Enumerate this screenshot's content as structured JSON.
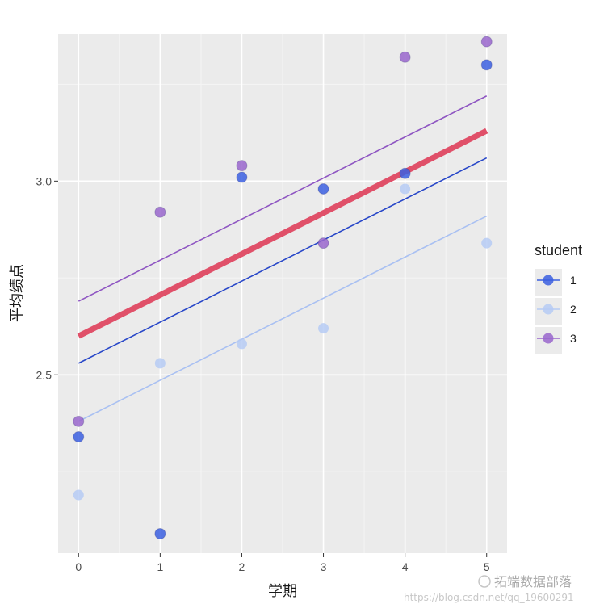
{
  "chart_data": {
    "type": "scatter",
    "title": "",
    "xlabel": "学期",
    "ylabel": "平均绩点",
    "xlim": [
      -0.25,
      5.25
    ],
    "ylim": [
      2.04,
      3.38
    ],
    "x_ticks": [
      0,
      1,
      2,
      3,
      4,
      5
    ],
    "x_tick_labels": [
      "0",
      "1",
      "2",
      "3",
      "4",
      "5"
    ],
    "y_ticks": [
      2.5,
      3.0
    ],
    "y_tick_labels": [
      "2.5",
      "3.0"
    ],
    "grid": true,
    "legend": {
      "title": "student",
      "position": "right",
      "entries": [
        {
          "label": "1",
          "color": "#3b5fe0"
        },
        {
          "label": "2",
          "color": "#b6cbf5"
        },
        {
          "label": "3",
          "color": "#9966cc"
        }
      ]
    },
    "series": [
      {
        "name": "1",
        "color": "#3b5fe0",
        "line_color": "#2746c8",
        "x": [
          0,
          1,
          2,
          3,
          4,
          5
        ],
        "values": [
          2.34,
          2.09,
          3.01,
          2.98,
          3.02,
          3.3
        ],
        "fit": {
          "intercept": 2.53,
          "slope": 0.106
        }
      },
      {
        "name": "2",
        "color": "#b6cbf5",
        "line_color": "#a9c0f2",
        "x": [
          0,
          1,
          2,
          3,
          4,
          5
        ],
        "values": [
          2.19,
          2.53,
          2.58,
          2.62,
          2.98,
          2.84
        ],
        "fit": {
          "intercept": 2.38,
          "slope": 0.106
        }
      },
      {
        "name": "3",
        "color": "#9966cc",
        "line_color": "#8e55c2",
        "x": [
          0,
          1,
          2,
          3,
          4,
          5
        ],
        "values": [
          2.38,
          2.92,
          3.04,
          2.84,
          3.32,
          3.36
        ],
        "fit": {
          "intercept": 2.69,
          "slope": 0.106
        }
      }
    ],
    "overall_fit": {
      "intercept": 2.6,
      "slope": 0.106,
      "color": "#e05069"
    }
  },
  "watermark": {
    "label": "拓端数据部落",
    "url": "https://blog.csdn.net/qq_19600291"
  }
}
